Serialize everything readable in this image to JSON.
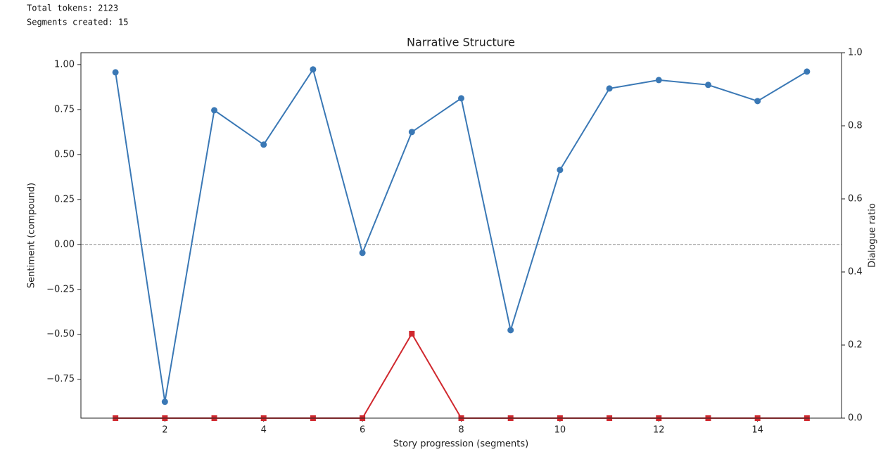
{
  "console": [
    "Total tokens: 2123",
    "Segments created: 15"
  ],
  "chart_data": {
    "type": "line",
    "title": "Narrative Structure",
    "xlabel": "Story progression (segments)",
    "ylabel": "Sentiment (compound)",
    "y2label": "Dialogue ratio",
    "x": [
      1,
      2,
      3,
      4,
      5,
      6,
      7,
      8,
      9,
      10,
      11,
      12,
      13,
      14,
      15
    ],
    "series": [
      {
        "name": "Sentiment (compound)",
        "color": "#3a78b5",
        "marker": "circle",
        "values": [
          0.957,
          -0.875,
          0.746,
          0.555,
          0.973,
          -0.047,
          0.625,
          0.8125,
          -0.477,
          0.414,
          0.867,
          0.914,
          0.887,
          0.797,
          0.961
        ]
      },
      {
        "name": "Dialogue ratio",
        "color": "#d0282e",
        "marker": "square",
        "axis": "y2",
        "values": [
          0,
          0,
          0,
          0,
          0,
          0,
          0.231,
          0,
          0,
          0,
          0,
          0,
          0,
          0,
          0
        ]
      }
    ],
    "xlim": [
      0.3,
      15.7
    ],
    "xticks": [
      2,
      4,
      6,
      8,
      10,
      12,
      14
    ],
    "ylim": [
      -0.966,
      1.066
    ],
    "yticks": [
      {
        "value": -0.75,
        "label": "−0.75"
      },
      {
        "value": -0.5,
        "label": "−0.50"
      },
      {
        "value": -0.25,
        "label": "−0.25"
      },
      {
        "value": 0,
        "label": "0.00"
      },
      {
        "value": 0.25,
        "label": "0.25"
      },
      {
        "value": 0.5,
        "label": "0.50"
      },
      {
        "value": 0.75,
        "label": "0.75"
      },
      {
        "value": 1,
        "label": "1.00"
      }
    ],
    "y2lim": [
      0,
      1
    ],
    "y2ticks": [
      {
        "value": 0,
        "label": "0.0"
      },
      0.2,
      0.4,
      0.6,
      0.8,
      {
        "value": 1,
        "label": "1.0"
      }
    ],
    "hline": 0,
    "ylabel_color": "#4a8ac4",
    "grid": false
  }
}
